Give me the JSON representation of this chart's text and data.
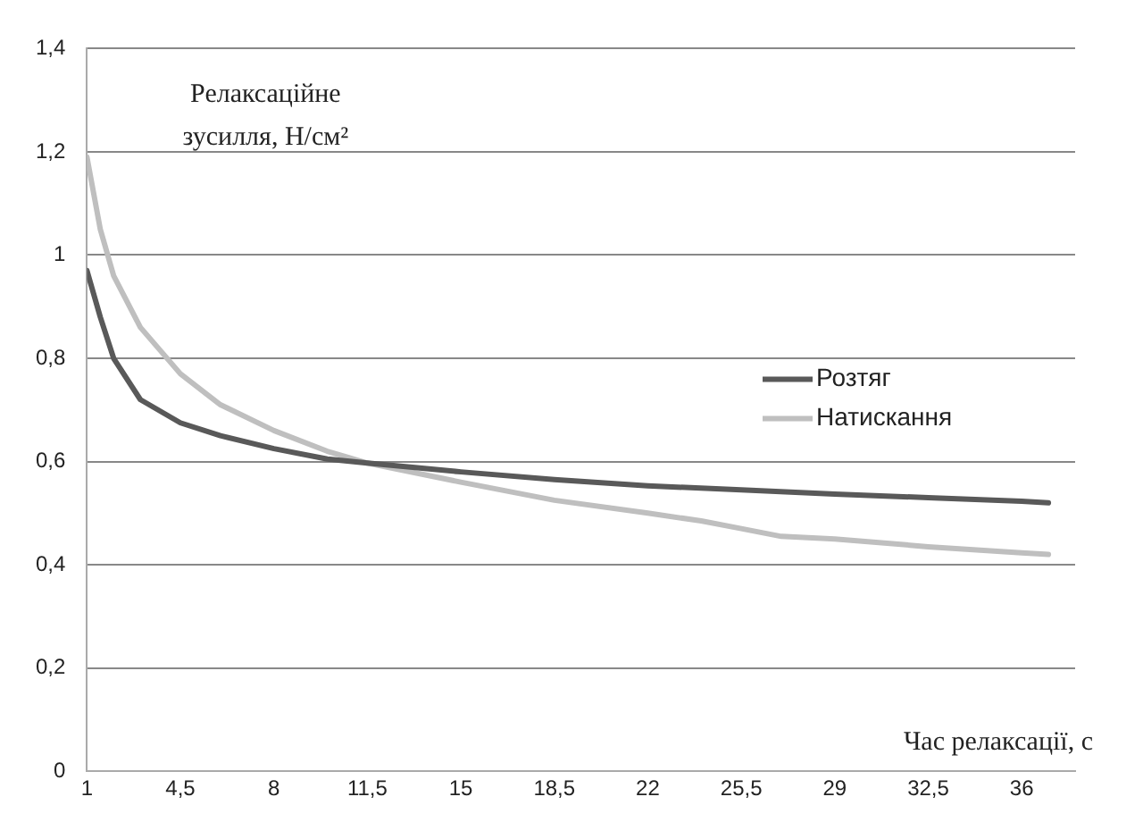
{
  "chart_data": {
    "type": "line",
    "xlabel": "Час релаксації, с",
    "ylabel": "Релаксаційне зусилля, Н/см²",
    "xlim": [
      1,
      38
    ],
    "xticks": [
      1,
      {
        "value": 4.5,
        "label": "4,5"
      },
      8,
      {
        "value": 11.5,
        "label": "11,5"
      },
      15,
      {
        "value": 18.5,
        "label": "18,5"
      },
      22,
      {
        "value": 25.5,
        "label": "25,5"
      },
      29,
      {
        "value": 32.5,
        "label": "32,5"
      },
      36
    ],
    "ylim": [
      0,
      1.4
    ],
    "yticks": [
      0,
      {
        "value": 0.2,
        "label": "0,2"
      },
      {
        "value": 0.4,
        "label": "0,4"
      },
      {
        "value": 0.6,
        "label": "0,6"
      },
      {
        "value": 0.8,
        "label": "0,8"
      },
      1,
      {
        "value": 1.2,
        "label": "1,2"
      },
      {
        "value": 1.4,
        "label": "1,4"
      }
    ],
    "grid": "y",
    "legend": "right",
    "marker": "none",
    "line_style": "solid",
    "series": [
      {
        "name": "Розтяг",
        "color": "#595959",
        "x": [
          1,
          1.5,
          2,
          3,
          4.5,
          6,
          8,
          10,
          11.5,
          15,
          18.5,
          22,
          25.5,
          29,
          32.5,
          36,
          37
        ],
        "values": [
          0.97,
          0.88,
          0.8,
          0.72,
          0.675,
          0.65,
          0.625,
          0.605,
          0.597,
          0.58,
          0.565,
          0.553,
          0.545,
          0.537,
          0.53,
          0.523,
          0.52
        ]
      },
      {
        "name": "Натискання",
        "color": "#bfbfbf",
        "x": [
          1,
          1.5,
          2,
          3,
          4.5,
          6,
          8,
          10,
          11.5,
          15,
          18.5,
          22,
          24,
          25.5,
          27,
          29,
          32.5,
          36,
          37
        ],
        "values": [
          1.19,
          1.05,
          0.96,
          0.86,
          0.77,
          0.71,
          0.66,
          0.62,
          0.597,
          0.56,
          0.525,
          0.5,
          0.485,
          0.47,
          0.455,
          0.45,
          0.435,
          0.423,
          0.42
        ]
      }
    ]
  }
}
